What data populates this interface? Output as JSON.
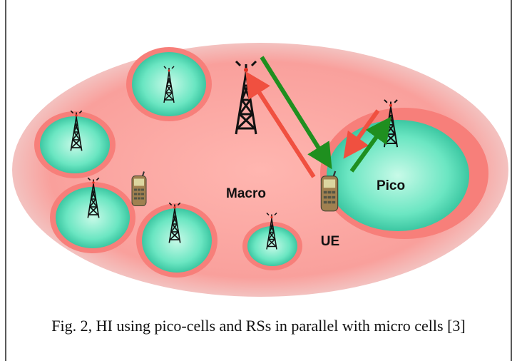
{
  "labels": {
    "macro": "Macro",
    "pico": "Pico",
    "ue": "UE"
  },
  "caption": "Fig. 2, HI using pico-cells and RSs in parallel with micro cells [3]"
}
